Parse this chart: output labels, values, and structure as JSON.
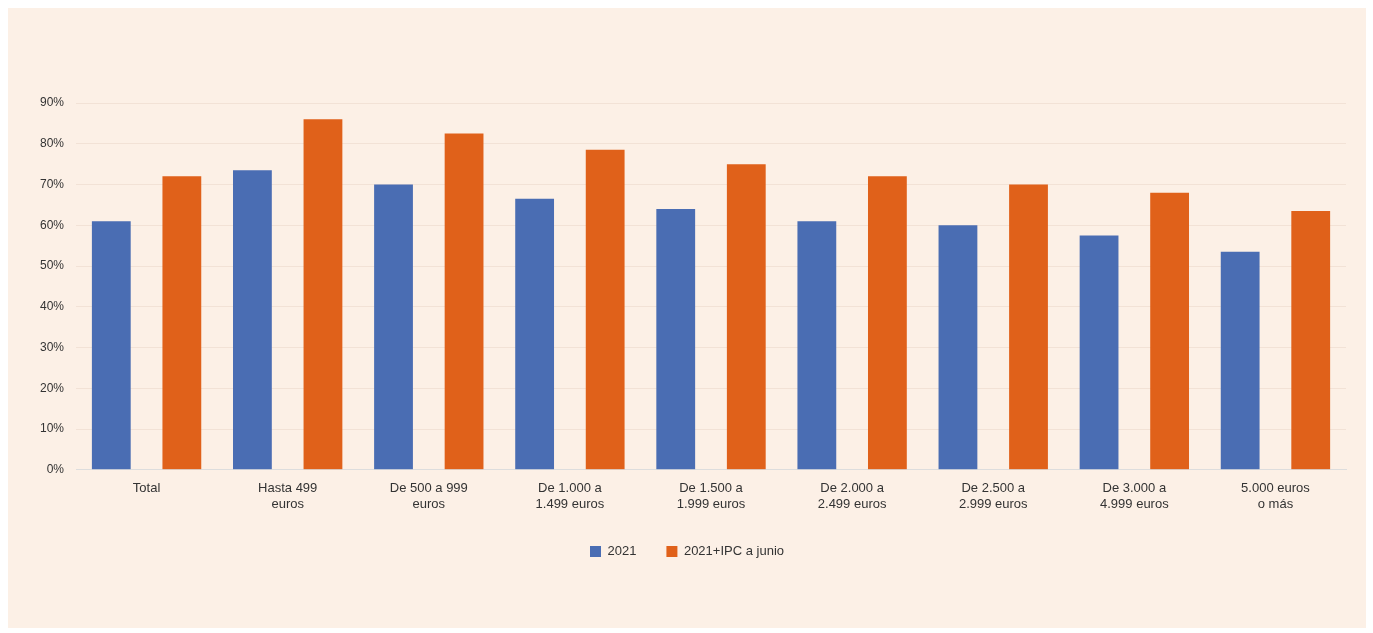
{
  "chart_data": {
    "type": "bar",
    "categories": [
      "Total",
      "Hasta 499 euros",
      "De 500 a 999 euros",
      "De 1.000 a 1.499 euros",
      "De 1.500 a 1.999 euros",
      "De 2.000 a 2.499 euros",
      "De 2.500 a 2.999 euros",
      "De 3.000 a 4.999 euros",
      "5.000 euros o más"
    ],
    "series": [
      {
        "name": "2021",
        "color": "#4a6db3",
        "values": [
          61,
          73.5,
          70,
          66.5,
          64,
          61,
          60,
          57.5,
          53.5
        ]
      },
      {
        "name": "2021+IPC a junio",
        "color": "#e0611a",
        "values": [
          72,
          86,
          82.5,
          78.5,
          75,
          72,
          70,
          68,
          63.5
        ]
      }
    ],
    "ylim": [
      0,
      90
    ],
    "yticks": [
      {
        "value": 0,
        "label": "0%"
      },
      {
        "value": 10,
        "label": "10%"
      },
      {
        "value": 20,
        "label": "20%"
      },
      {
        "value": 30,
        "label": "30%"
      },
      {
        "value": 40,
        "label": "40%"
      },
      {
        "value": 50,
        "label": "50%"
      },
      {
        "value": 60,
        "label": "60%"
      },
      {
        "value": 70,
        "label": "70%"
      },
      {
        "value": 80,
        "label": "80%"
      },
      {
        "value": 90,
        "label": "90%"
      }
    ],
    "grid": "y",
    "legend": "bottom"
  }
}
